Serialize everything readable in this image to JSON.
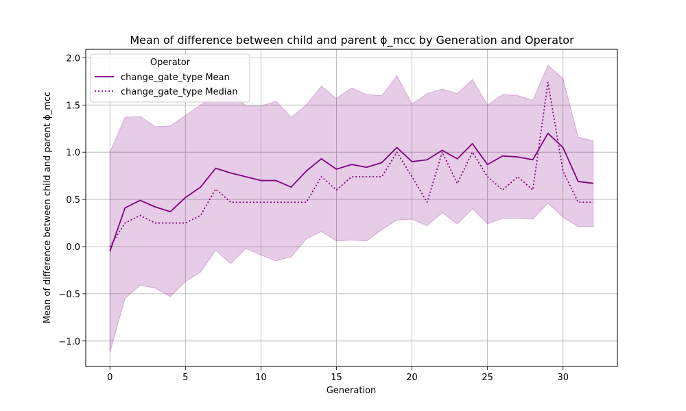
{
  "chart_data": {
    "type": "line",
    "title": "Mean of difference between child and parent ϕ_mcc by Generation and Operator",
    "xlabel": "Generation",
    "ylabel": "Mean of difference between child and parent ϕ_mcc",
    "xlim": [
      -1.6,
      33.6
    ],
    "ylim": [
      -1.27,
      2.09
    ],
    "xticks": [
      0,
      5,
      10,
      15,
      20,
      25,
      30
    ],
    "yticks": [
      -1.0,
      -0.5,
      0.0,
      0.5,
      1.0,
      1.5,
      2.0
    ],
    "ytick_labels": [
      "−1.0",
      "−0.5",
      "0.0",
      "0.5",
      "1.0",
      "1.5",
      "2.0"
    ],
    "grid": true,
    "legend": {
      "title": "Operator",
      "placement": "top-left"
    },
    "colors": {
      "line": "#800080",
      "band": "#800080"
    },
    "x": [
      0,
      1,
      2,
      3,
      4,
      5,
      6,
      7,
      8,
      9,
      10,
      11,
      12,
      13,
      14,
      15,
      16,
      17,
      18,
      19,
      20,
      21,
      22,
      23,
      24,
      25,
      26,
      27,
      28,
      29,
      30,
      31,
      32
    ],
    "series": [
      {
        "name": "change_gate_type Mean",
        "style": "solid",
        "values": [
          -0.05,
          0.41,
          0.49,
          0.42,
          0.37,
          0.52,
          0.63,
          0.83,
          0.78,
          0.74,
          0.7,
          0.7,
          0.63,
          0.8,
          0.93,
          0.82,
          0.87,
          0.84,
          0.89,
          1.05,
          0.9,
          0.92,
          1.02,
          0.93,
          1.09,
          0.87,
          0.96,
          0.95,
          0.92,
          1.2,
          1.05,
          0.69,
          0.67
        ]
      },
      {
        "name": "change_gate_type Median",
        "style": "dotted",
        "values": [
          0.0,
          0.25,
          0.33,
          0.25,
          0.25,
          0.25,
          0.33,
          0.61,
          0.47,
          0.47,
          0.47,
          0.47,
          0.47,
          0.47,
          0.74,
          0.6,
          0.74,
          0.74,
          0.74,
          1.0,
          0.74,
          0.47,
          1.0,
          0.67,
          1.0,
          0.74,
          0.6,
          0.74,
          0.6,
          1.74,
          0.8,
          0.47,
          0.47
        ]
      }
    ],
    "band": {
      "upper": [
        1.0,
        1.37,
        1.38,
        1.27,
        1.28,
        1.39,
        1.5,
        1.6,
        1.65,
        1.49,
        1.49,
        1.54,
        1.37,
        1.5,
        1.7,
        1.57,
        1.68,
        1.61,
        1.6,
        1.81,
        1.51,
        1.62,
        1.67,
        1.62,
        1.77,
        1.5,
        1.61,
        1.6,
        1.55,
        1.92,
        1.78,
        1.16,
        1.12
      ],
      "lower": [
        -1.12,
        -0.55,
        -0.41,
        -0.44,
        -0.53,
        -0.37,
        -0.27,
        -0.04,
        -0.18,
        -0.02,
        -0.09,
        -0.15,
        -0.11,
        0.08,
        0.16,
        0.06,
        0.07,
        0.06,
        0.18,
        0.28,
        0.29,
        0.22,
        0.36,
        0.24,
        0.4,
        0.24,
        0.3,
        0.3,
        0.29,
        0.46,
        0.31,
        0.21,
        0.21
      ]
    }
  }
}
